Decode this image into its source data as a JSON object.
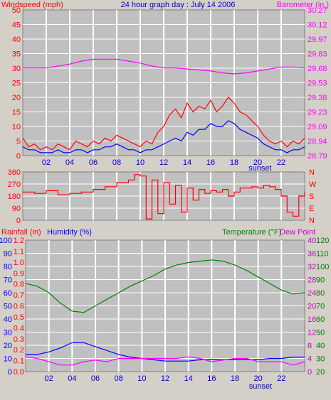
{
  "colors": {
    "bg": "#d4d0c8",
    "plot": "#c0c0c0",
    "grid": "#ffffff",
    "red": "#ff0000",
    "blue": "#0000ff",
    "magenta": "#ff00ff",
    "green": "#008000",
    "darkblue": "#0000cc",
    "purple": "#cc00cc"
  },
  "header": {
    "left": "Windspeed (mph)",
    "center": "24 hour graph day : July 14 2006",
    "right": "Barometer (in.)"
  },
  "sunset_label": "sunset",
  "x_ticks": [
    "02",
    "04",
    "06",
    "08",
    "10",
    "12",
    "14",
    "16",
    "18",
    "20",
    "22"
  ],
  "chart_data": [
    {
      "type": "line",
      "name": "wind-baro",
      "title": "24 hour graph day : July 14 2006",
      "xlabel": "",
      "xlim": [
        0,
        24
      ],
      "axes": {
        "left": {
          "label": "Windspeed (mph)",
          "ticks": [
            "50",
            "45",
            "40",
            "35",
            "30",
            "25",
            "20",
            "15",
            "10",
            "5",
            "0"
          ],
          "lim": [
            0,
            50
          ]
        },
        "right": {
          "label": "Barometer (in.)",
          "ticks": [
            "30.27",
            "30.12",
            "29.97",
            "29.83",
            "29.68",
            "29.53",
            "29.38",
            "29.23",
            "29.09",
            "28.94",
            "28.79"
          ],
          "lim": [
            28.79,
            30.27
          ]
        }
      },
      "series": [
        {
          "axis": "right",
          "color": "#ff00ff",
          "x": [
            0,
            1,
            2,
            3,
            4,
            5,
            6,
            7,
            8,
            9,
            10,
            11,
            12,
            13,
            14,
            15,
            16,
            17,
            18,
            19,
            20,
            21,
            22,
            23,
            24
          ],
          "values": [
            29.68,
            29.68,
            29.68,
            29.7,
            29.72,
            29.75,
            29.77,
            29.77,
            29.77,
            29.75,
            29.73,
            29.7,
            29.68,
            29.68,
            29.67,
            29.66,
            29.65,
            29.63,
            29.62,
            29.63,
            29.65,
            29.67,
            29.69,
            29.69,
            29.68
          ]
        },
        {
          "axis": "left",
          "color": "#ff0000",
          "x": [
            0,
            0.5,
            1,
            1.5,
            2,
            2.5,
            3,
            3.5,
            4,
            4.5,
            5,
            5.5,
            6,
            6.5,
            7,
            7.5,
            8,
            8.5,
            9,
            9.5,
            10,
            10.5,
            11,
            11.5,
            12,
            12.5,
            13,
            13.5,
            14,
            14.5,
            15,
            15.5,
            16,
            16.5,
            17,
            17.5,
            18,
            18.5,
            19,
            19.5,
            20,
            20.5,
            21,
            21.5,
            22,
            22.5,
            23,
            23.5,
            24
          ],
          "values": [
            6,
            3,
            4,
            2,
            3,
            2,
            4,
            3,
            2,
            5,
            4,
            3,
            5,
            4,
            6,
            5,
            7,
            6,
            5,
            4,
            3,
            5,
            4,
            8,
            10,
            14,
            16,
            13,
            18,
            15,
            17,
            16,
            19,
            15,
            17,
            20,
            18,
            15,
            14,
            12,
            10,
            7,
            5,
            4,
            5,
            3,
            5,
            4,
            6
          ]
        },
        {
          "axis": "left",
          "color": "#0000ff",
          "x": [
            0,
            0.5,
            1,
            1.5,
            2,
            2.5,
            3,
            3.5,
            4,
            4.5,
            5,
            5.5,
            6,
            6.5,
            7,
            7.5,
            8,
            8.5,
            9,
            9.5,
            10,
            10.5,
            11,
            11.5,
            12,
            12.5,
            13,
            13.5,
            14,
            14.5,
            15,
            15.5,
            16,
            16.5,
            17,
            17.5,
            18,
            18.5,
            19,
            19.5,
            20,
            20.5,
            21,
            21.5,
            22,
            22.5,
            23,
            23.5,
            24
          ],
          "values": [
            3,
            2,
            2,
            1,
            1,
            1,
            2,
            1,
            1,
            2,
            2,
            1,
            2,
            2,
            3,
            3,
            4,
            3,
            2,
            2,
            1,
            2,
            2,
            3,
            4,
            5,
            6,
            5,
            8,
            7,
            9,
            9,
            11,
            10,
            10,
            12,
            11,
            9,
            8,
            7,
            6,
            4,
            3,
            2,
            2,
            1,
            2,
            2,
            3
          ]
        }
      ]
    },
    {
      "type": "scatter",
      "name": "wind-direction",
      "xlim": [
        0,
        24
      ],
      "axes": {
        "left": {
          "ticks": [
            "360",
            "270",
            "180",
            "90",
            "0"
          ],
          "lim": [
            0,
            360
          ]
        },
        "right": {
          "ticks": [
            "N",
            "W",
            "S",
            "E",
            "N"
          ]
        }
      },
      "series": [
        {
          "axis": "left",
          "color": "#ff0000",
          "x": [
            0,
            1,
            2,
            3,
            4,
            5,
            6,
            7,
            8,
            9,
            9.5,
            10,
            10.5,
            11,
            11.5,
            12,
            12.5,
            13,
            13.5,
            14,
            14.5,
            15,
            15.5,
            16,
            16.5,
            17,
            17.5,
            18,
            18.5,
            19,
            19.5,
            20,
            20.5,
            21,
            21.5,
            22,
            22.5,
            23,
            23.5,
            24
          ],
          "values": [
            210,
            200,
            220,
            190,
            200,
            210,
            230,
            250,
            280,
            300,
            340,
            330,
            10,
            300,
            50,
            280,
            120,
            260,
            60,
            240,
            150,
            230,
            200,
            220,
            210,
            230,
            180,
            210,
            240,
            240,
            250,
            240,
            260,
            250,
            230,
            180,
            60,
            30,
            180,
            210
          ]
        }
      ]
    },
    {
      "type": "line",
      "name": "rain-humidity-temp",
      "xlim": [
        0,
        24
      ],
      "axes": {
        "left_rain": {
          "label": "Rainfall (in)",
          "ticks": [
            "1.2",
            "1.1",
            "1.0",
            "0.9",
            "0.8",
            "0.7",
            "0.6",
            "0.5",
            "0.4",
            "0.3",
            "0.2",
            "0.1",
            "0.0"
          ],
          "lim": [
            0,
            1.2
          ]
        },
        "left_humidity": {
          "label": "Humidity (%)",
          "ticks": [
            "100",
            "90",
            "80",
            "70",
            "60",
            "50",
            "40",
            "30",
            "20",
            "10",
            "0"
          ],
          "lim": [
            0,
            100
          ]
        },
        "right_dew": {
          "label": "Dew Point",
          "ticks": [
            "40",
            "36",
            "32",
            "28",
            "24",
            "20",
            "16",
            "12",
            "8",
            "4",
            "0"
          ],
          "lim": [
            0,
            40
          ]
        },
        "right_temp": {
          "label": "Temperature (°F)",
          "ticks": [
            "120",
            "110",
            "100",
            "90",
            "80",
            "70",
            "60",
            "50",
            "40",
            "30",
            "20"
          ],
          "lim": [
            20,
            120
          ]
        }
      },
      "series": [
        {
          "axis": "right_temp",
          "color": "#008000",
          "x": [
            0,
            1,
            2,
            3,
            4,
            5,
            6,
            7,
            8,
            9,
            10,
            11,
            12,
            13,
            14,
            15,
            16,
            17,
            18,
            19,
            20,
            21,
            22,
            23,
            24
          ],
          "values": [
            87,
            85,
            80,
            72,
            66,
            65,
            70,
            75,
            80,
            85,
            89,
            93,
            98,
            101,
            103,
            104,
            105,
            104,
            101,
            97,
            92,
            87,
            82,
            79,
            80
          ]
        },
        {
          "axis": "left_humidity",
          "color": "#0000ff",
          "x": [
            0,
            1,
            2,
            3,
            4,
            5,
            6,
            7,
            8,
            9,
            10,
            11,
            12,
            13,
            14,
            15,
            16,
            17,
            18,
            19,
            20,
            21,
            22,
            23,
            24
          ],
          "values": [
            13,
            13,
            15,
            18,
            22,
            22,
            19,
            16,
            13,
            11,
            10,
            9,
            8,
            8,
            8,
            9,
            9,
            9,
            9,
            9,
            9,
            10,
            10,
            11,
            11
          ]
        },
        {
          "axis": "right_dew",
          "color": "#ff00ff",
          "x": [
            0,
            1,
            2,
            3,
            4,
            5,
            6,
            7,
            8,
            9,
            10,
            11,
            12,
            13,
            14,
            15,
            16,
            17,
            18,
            19,
            20,
            21,
            22,
            23,
            24
          ],
          "values": [
            4.5,
            4,
            3,
            2,
            2,
            3,
            3.5,
            3,
            4,
            4,
            4,
            4,
            4,
            4,
            4.5,
            4,
            3,
            3.5,
            4,
            4,
            3,
            3,
            3,
            2,
            3
          ]
        }
      ]
    }
  ]
}
